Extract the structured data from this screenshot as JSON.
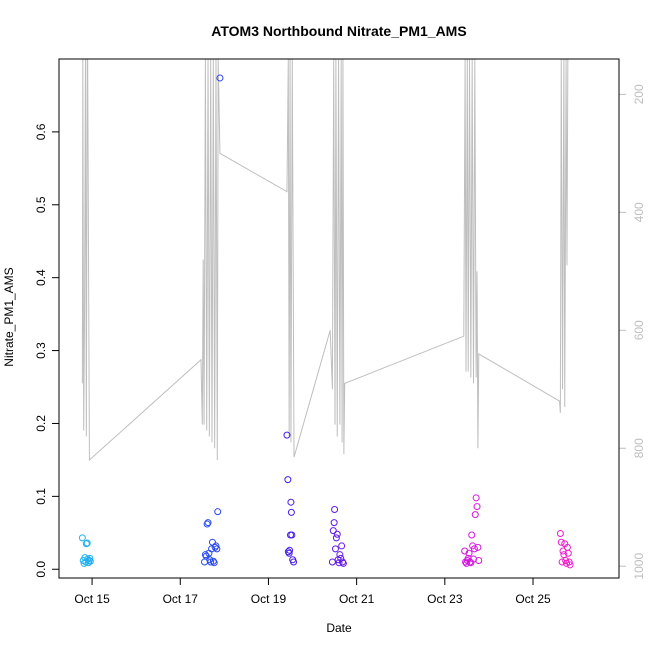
{
  "chart_data": {
    "type": "scatter",
    "title": "ATOM3 Northbound Nitrate_PM1_AMS",
    "xlabel": "Date",
    "ylabel": "Nitrate_PM1_AMS",
    "x_ticks": [
      "Oct 15",
      "Oct 17",
      "Oct 19",
      "Oct 21",
      "Oct 23",
      "Oct 25"
    ],
    "x_tick_days": [
      15,
      17,
      19,
      21,
      23,
      25
    ],
    "xlim_days": [
      14.25,
      26.95
    ],
    "ylim": [
      -0.012,
      0.7
    ],
    "y_ticks": [
      0.0,
      0.1,
      0.2,
      0.3,
      0.4,
      0.5,
      0.6
    ],
    "y_tick_labels": [
      "0.0",
      "0.1",
      "0.2",
      "0.3",
      "0.4",
      "0.5",
      "0.6"
    ],
    "right_axis": {
      "color": "#bebebe",
      "reversed": true,
      "lim": [
        1020,
        140
      ],
      "ticks": [
        200,
        400,
        600,
        800,
        1000
      ],
      "tick_labels": [
        "200",
        "400",
        "600",
        "800",
        "1000"
      ]
    },
    "grid": false,
    "legend": "none",
    "point_color_ramp": [
      "#1fb4f0",
      "#1e5ef5",
      "#3f1ee8",
      "#7a14e6",
      "#d616e0",
      "#f01ec8"
    ],
    "series": [
      {
        "marker": "open-circle",
        "points": [
          {
            "day": 14.78,
            "v": 0.043
          },
          {
            "day": 14.8,
            "v": 0.012
          },
          {
            "day": 14.82,
            "v": 0.008
          },
          {
            "day": 14.84,
            "v": 0.016
          },
          {
            "day": 14.86,
            "v": 0.01
          },
          {
            "day": 14.87,
            "v": 0.035
          },
          {
            "day": 14.89,
            "v": 0.036
          },
          {
            "day": 14.9,
            "v": 0.014
          },
          {
            "day": 14.92,
            "v": 0.009
          },
          {
            "day": 14.93,
            "v": 0.012
          },
          {
            "day": 14.95,
            "v": 0.015
          },
          {
            "day": 14.96,
            "v": 0.011
          },
          {
            "day": 17.55,
            "v": 0.01
          },
          {
            "day": 17.57,
            "v": 0.02
          },
          {
            "day": 17.59,
            "v": 0.018
          },
          {
            "day": 17.61,
            "v": 0.062
          },
          {
            "day": 17.63,
            "v": 0.064
          },
          {
            "day": 17.65,
            "v": 0.022
          },
          {
            "day": 17.67,
            "v": 0.013
          },
          {
            "day": 17.69,
            "v": 0.01
          },
          {
            "day": 17.71,
            "v": 0.028
          },
          {
            "day": 17.73,
            "v": 0.037
          },
          {
            "day": 17.75,
            "v": 0.011
          },
          {
            "day": 17.77,
            "v": 0.009
          },
          {
            "day": 17.79,
            "v": 0.03
          },
          {
            "day": 17.81,
            "v": 0.032
          },
          {
            "day": 17.83,
            "v": 0.028
          },
          {
            "day": 17.85,
            "v": 0.079
          },
          {
            "day": 17.9,
            "v": 0.674
          },
          {
            "day": 19.42,
            "v": 0.184
          },
          {
            "day": 19.44,
            "v": 0.123
          },
          {
            "day": 19.45,
            "v": 0.024
          },
          {
            "day": 19.47,
            "v": 0.022
          },
          {
            "day": 19.48,
            "v": 0.026
          },
          {
            "day": 19.5,
            "v": 0.047
          },
          {
            "day": 19.51,
            "v": 0.092
          },
          {
            "day": 19.52,
            "v": 0.078
          },
          {
            "day": 19.53,
            "v": 0.047
          },
          {
            "day": 19.55,
            "v": 0.013
          },
          {
            "day": 19.57,
            "v": 0.01
          },
          {
            "day": 20.45,
            "v": 0.01
          },
          {
            "day": 20.47,
            "v": 0.053
          },
          {
            "day": 20.49,
            "v": 0.064
          },
          {
            "day": 20.5,
            "v": 0.082
          },
          {
            "day": 20.52,
            "v": 0.028
          },
          {
            "day": 20.54,
            "v": 0.043
          },
          {
            "day": 20.56,
            "v": 0.048
          },
          {
            "day": 20.58,
            "v": 0.013
          },
          {
            "day": 20.6,
            "v": 0.009
          },
          {
            "day": 20.62,
            "v": 0.02
          },
          {
            "day": 20.64,
            "v": 0.015
          },
          {
            "day": 20.66,
            "v": 0.032
          },
          {
            "day": 20.68,
            "v": 0.01
          },
          {
            "day": 20.7,
            "v": 0.008
          },
          {
            "day": 23.45,
            "v": 0.025
          },
          {
            "day": 23.47,
            "v": 0.01
          },
          {
            "day": 23.49,
            "v": 0.008
          },
          {
            "day": 23.51,
            "v": 0.012
          },
          {
            "day": 23.53,
            "v": 0.015
          },
          {
            "day": 23.55,
            "v": 0.022
          },
          {
            "day": 23.57,
            "v": 0.01
          },
          {
            "day": 23.59,
            "v": 0.009
          },
          {
            "day": 23.61,
            "v": 0.047
          },
          {
            "day": 23.63,
            "v": 0.032
          },
          {
            "day": 23.65,
            "v": 0.014
          },
          {
            "day": 23.67,
            "v": 0.028
          },
          {
            "day": 23.69,
            "v": 0.075
          },
          {
            "day": 23.71,
            "v": 0.098
          },
          {
            "day": 23.73,
            "v": 0.086
          },
          {
            "day": 23.75,
            "v": 0.03
          },
          {
            "day": 23.77,
            "v": 0.012
          },
          {
            "day": 25.62,
            "v": 0.049
          },
          {
            "day": 25.64,
            "v": 0.037
          },
          {
            "day": 25.66,
            "v": 0.01
          },
          {
            "day": 25.68,
            "v": 0.025
          },
          {
            "day": 25.7,
            "v": 0.02
          },
          {
            "day": 25.72,
            "v": 0.035
          },
          {
            "day": 25.74,
            "v": 0.012
          },
          {
            "day": 25.76,
            "v": 0.008
          },
          {
            "day": 25.78,
            "v": 0.03
          },
          {
            "day": 25.8,
            "v": 0.022
          },
          {
            "day": 25.82,
            "v": 0.01
          },
          {
            "day": 25.84,
            "v": 0.006
          }
        ]
      },
      {
        "axis": "right",
        "color": "#bebebe",
        "line": true,
        "points": [
          {
            "day": 14.78,
            "v": 690
          },
          {
            "day": 14.79,
            "v": 140
          },
          {
            "day": 14.81,
            "v": 770
          },
          {
            "day": 14.83,
            "v": 560
          },
          {
            "day": 14.85,
            "v": 140
          },
          {
            "day": 14.87,
            "v": 780
          },
          {
            "day": 14.89,
            "v": 140
          },
          {
            "day": 14.9,
            "v": 140
          },
          {
            "day": 14.94,
            "v": 820
          },
          {
            "day": 17.47,
            "v": 650
          },
          {
            "day": 17.5,
            "v": 760
          },
          {
            "day": 17.52,
            "v": 480
          },
          {
            "day": 17.54,
            "v": 760
          },
          {
            "day": 17.57,
            "v": 140
          },
          {
            "day": 17.6,
            "v": 770
          },
          {
            "day": 17.63,
            "v": 140
          },
          {
            "day": 17.66,
            "v": 780
          },
          {
            "day": 17.69,
            "v": 140
          },
          {
            "day": 17.72,
            "v": 790
          },
          {
            "day": 17.75,
            "v": 140
          },
          {
            "day": 17.78,
            "v": 800
          },
          {
            "day": 17.81,
            "v": 140
          },
          {
            "day": 17.84,
            "v": 820
          },
          {
            "day": 17.86,
            "v": 140
          },
          {
            "day": 17.9,
            "v": 300
          },
          {
            "day": 19.42,
            "v": 365
          },
          {
            "day": 19.45,
            "v": 140
          },
          {
            "day": 19.47,
            "v": 780
          },
          {
            "day": 19.49,
            "v": 140
          },
          {
            "day": 19.51,
            "v": 790
          },
          {
            "day": 19.54,
            "v": 140
          },
          {
            "day": 19.58,
            "v": 815
          },
          {
            "day": 20.4,
            "v": 600
          },
          {
            "day": 20.45,
            "v": 700
          },
          {
            "day": 20.48,
            "v": 140
          },
          {
            "day": 20.51,
            "v": 760
          },
          {
            "day": 20.53,
            "v": 140
          },
          {
            "day": 20.56,
            "v": 780
          },
          {
            "day": 20.59,
            "v": 140
          },
          {
            "day": 20.62,
            "v": 760
          },
          {
            "day": 20.65,
            "v": 140
          },
          {
            "day": 20.67,
            "v": 790
          },
          {
            "day": 20.69,
            "v": 140
          },
          {
            "day": 20.71,
            "v": 810
          },
          {
            "day": 20.73,
            "v": 690
          },
          {
            "day": 23.43,
            "v": 610
          },
          {
            "day": 23.46,
            "v": 140
          },
          {
            "day": 23.48,
            "v": 670
          },
          {
            "day": 23.51,
            "v": 140
          },
          {
            "day": 23.53,
            "v": 670
          },
          {
            "day": 23.56,
            "v": 140
          },
          {
            "day": 23.59,
            "v": 680
          },
          {
            "day": 23.62,
            "v": 140
          },
          {
            "day": 23.65,
            "v": 690
          },
          {
            "day": 23.68,
            "v": 140
          },
          {
            "day": 23.71,
            "v": 680
          },
          {
            "day": 23.73,
            "v": 500
          },
          {
            "day": 23.75,
            "v": 800
          },
          {
            "day": 23.77,
            "v": 640
          },
          {
            "day": 25.6,
            "v": 720
          },
          {
            "day": 25.62,
            "v": 740
          },
          {
            "day": 25.64,
            "v": 140
          },
          {
            "day": 25.67,
            "v": 700
          },
          {
            "day": 25.7,
            "v": 140
          },
          {
            "day": 25.72,
            "v": 730
          },
          {
            "day": 25.75,
            "v": 140
          },
          {
            "day": 25.77,
            "v": 490
          },
          {
            "day": 25.79,
            "v": 140
          }
        ]
      }
    ]
  }
}
